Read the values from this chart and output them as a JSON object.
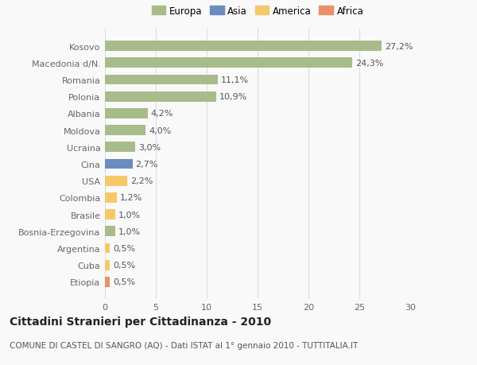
{
  "categories": [
    "Kosovo",
    "Macedonia d/N.",
    "Romania",
    "Polonia",
    "Albania",
    "Moldova",
    "Ucraina",
    "Cina",
    "USA",
    "Colombia",
    "Brasile",
    "Bosnia-Erzegovina",
    "Argentina",
    "Cuba",
    "Etiopia"
  ],
  "values": [
    27.2,
    24.3,
    11.1,
    10.9,
    4.2,
    4.0,
    3.0,
    2.7,
    2.2,
    1.2,
    1.0,
    1.0,
    0.5,
    0.5,
    0.5
  ],
  "labels": [
    "27,2%",
    "24,3%",
    "11,1%",
    "10,9%",
    "4,2%",
    "4,0%",
    "3,0%",
    "2,7%",
    "2,2%",
    "1,2%",
    "1,0%",
    "1,0%",
    "0,5%",
    "0,5%",
    "0,5%"
  ],
  "colors": [
    "#a8bb8a",
    "#a8bb8a",
    "#a8bb8a",
    "#a8bb8a",
    "#a8bb8a",
    "#a8bb8a",
    "#a8bb8a",
    "#6b8cbf",
    "#f5c96a",
    "#f5c96a",
    "#f5c96a",
    "#a8bb8a",
    "#f5c96a",
    "#f5c96a",
    "#e8906a"
  ],
  "legend_labels": [
    "Europa",
    "Asia",
    "America",
    "Africa"
  ],
  "legend_colors": [
    "#a8bb8a",
    "#6b8cbf",
    "#f5c96a",
    "#e8906a"
  ],
  "xlim": [
    0,
    30
  ],
  "xticks": [
    0,
    5,
    10,
    15,
    20,
    25,
    30
  ],
  "title": "Cittadini Stranieri per Cittadinanza - 2010",
  "subtitle": "COMUNE DI CASTEL DI SANGRO (AQ) - Dati ISTAT al 1° gennaio 2010 - TUTTITALIA.IT",
  "bg_color": "#f9f9f9",
  "grid_color": "#dddddd",
  "bar_height": 0.6,
  "label_fontsize": 8,
  "tick_fontsize": 8,
  "title_fontsize": 10,
  "subtitle_fontsize": 7.5
}
